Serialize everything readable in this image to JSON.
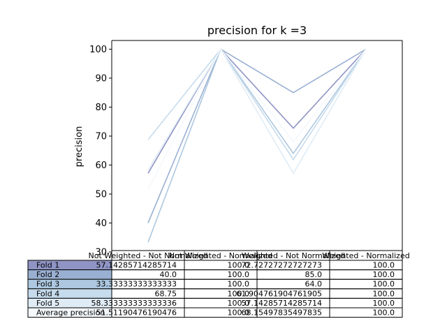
{
  "chart_data": {
    "type": "line",
    "title": "precision for k =3",
    "ylabel": "precision",
    "ylim": [
      30,
      103
    ],
    "yticks": [
      30,
      40,
      50,
      60,
      70,
      80,
      90,
      100
    ],
    "categories": [
      "Not Weighted - Not Normalized",
      "Not Weighted - Normalized",
      "Weighted - Not Normalized",
      "Weighted - Normalized"
    ],
    "series": [
      {
        "name": "Fold 1",
        "color": "#8f94c4",
        "values": [
          57.14285714285714,
          100.0,
          72.72727272727273,
          100.0
        ],
        "cells": [
          "57.14285714285714",
          "100.0",
          "72.72727272727273",
          "100.0"
        ]
      },
      {
        "name": "Fold 2",
        "color": "#9ab0d2",
        "values": [
          40.0,
          100.0,
          85.0,
          100.0
        ],
        "cells": [
          "40.0",
          "100.0",
          "85.0",
          "100.0"
        ]
      },
      {
        "name": "Fold 3",
        "color": "#adc8e0",
        "values": [
          33.33333333333333,
          100.0,
          64.0,
          100.0
        ],
        "cells": [
          "33.33333333333333",
          "100.0",
          "64.0",
          "100.0"
        ]
      },
      {
        "name": "Fold 4",
        "color": "#c6dbec",
        "values": [
          68.75,
          100.0,
          61.904761904761905,
          100.0
        ],
        "cells": [
          "68.75",
          "100.0",
          "61.904761904761905",
          "100.0"
        ]
      },
      {
        "name": "Fold 5",
        "color": "#e0ecf5",
        "values": [
          58.333333333333336,
          100.0,
          57.14285714285714,
          100.0
        ],
        "cells": [
          "58.333333333333336",
          "100.0",
          "57.14285714285714",
          "100.0"
        ]
      },
      {
        "name": "Average precision",
        "color": "#f4f8fc",
        "values": [
          51.51190476190476,
          100.0,
          68.15497835497835,
          100.0
        ],
        "cells": [
          "51.51190476190476",
          "100.0",
          "68.15497835497835",
          "100.0"
        ]
      }
    ]
  }
}
